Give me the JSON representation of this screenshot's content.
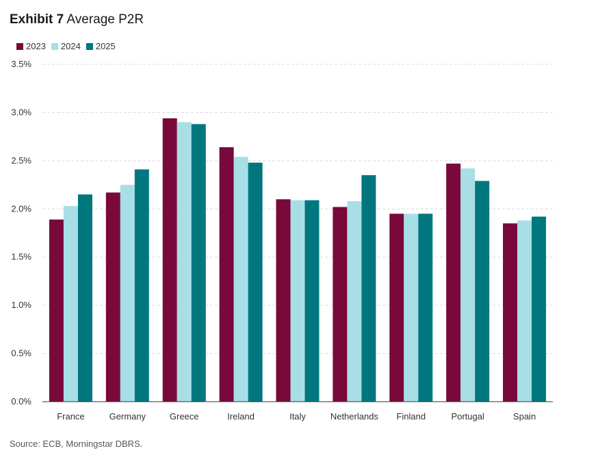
{
  "header": {
    "exhibit": "Exhibit 7",
    "title": "Average P2R"
  },
  "source": "Source: ECB, Morningstar DBRS.",
  "chart_data": {
    "type": "bar",
    "categories": [
      "France",
      "Germany",
      "Greece",
      "Ireland",
      "Italy",
      "Netherlands",
      "Finland",
      "Portugal",
      "Spain"
    ],
    "series": [
      {
        "name": "2023",
        "color": "#78093a",
        "values": [
          1.89,
          2.17,
          2.94,
          2.64,
          2.1,
          2.02,
          1.95,
          2.47,
          1.85
        ]
      },
      {
        "name": "2024",
        "color": "#a8dfe6",
        "values": [
          2.03,
          2.25,
          2.9,
          2.54,
          2.09,
          2.08,
          1.95,
          2.42,
          1.88
        ]
      },
      {
        "name": "2025",
        "color": "#00777f",
        "values": [
          2.15,
          2.41,
          2.88,
          2.48,
          2.09,
          2.35,
          1.95,
          2.29,
          1.92
        ]
      }
    ],
    "y_ticks": [
      "0.0%",
      "0.5%",
      "1.0%",
      "1.5%",
      "2.0%",
      "2.5%",
      "3.0%",
      "3.5%"
    ],
    "ylim": [
      0,
      3.5
    ],
    "grid": true,
    "legend_position": "top-left"
  }
}
